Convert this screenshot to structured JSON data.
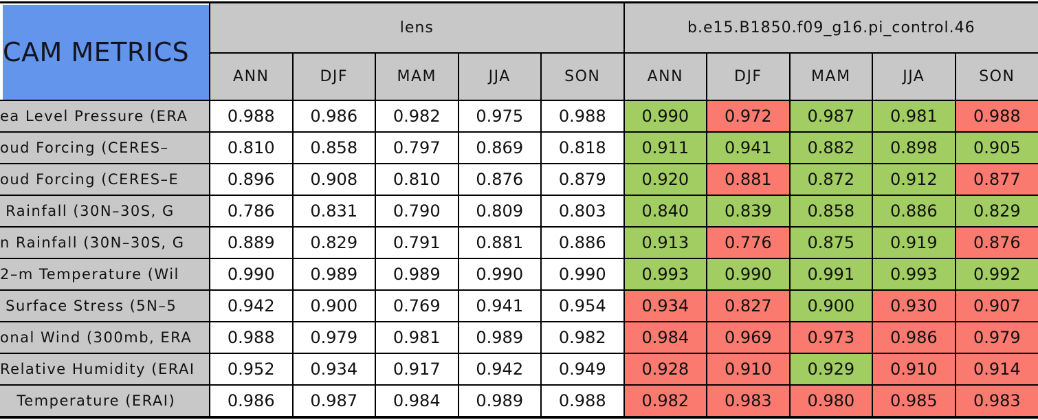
{
  "title_cell": {
    "text": "CAM METRICS"
  },
  "models": {
    "left": "lens",
    "right": "b.e15.B1850.f09_g16.pi_control.46"
  },
  "seasons": [
    "ANN",
    "DJF",
    "MAM",
    "JJA",
    "SON"
  ],
  "colors": {
    "title_bg": "#6495ED",
    "header_bg": "#C8C8C8",
    "lens_cell_bg": "#FFFFFF",
    "good_green": "#A2CD62",
    "bad_red": "#FA7A70",
    "border": "#000000",
    "text": "#111111"
  },
  "chart_data": {
    "type": "table",
    "title": "CAM METRICS",
    "column_groups": [
      "lens",
      "b.e15.B1850.f09_g16.pi_control.46"
    ],
    "columns": [
      "ANN",
      "DJF",
      "MAM",
      "JJA",
      "SON"
    ],
    "rows": [
      {
        "label": "ea Level Pressure (ERA",
        "lens": [
          0.988,
          0.986,
          0.982,
          0.975,
          0.988
        ],
        "control": [
          0.99,
          0.972,
          0.987,
          0.981,
          0.988
        ],
        "control_flags": [
          "green",
          "red",
          "green",
          "green",
          "red"
        ]
      },
      {
        "label": "oud Forcing (CERES–",
        "lens": [
          0.81,
          0.858,
          0.797,
          0.869,
          0.818
        ],
        "control": [
          0.911,
          0.941,
          0.882,
          0.898,
          0.905
        ],
        "control_flags": [
          "green",
          "green",
          "green",
          "green",
          "green"
        ]
      },
      {
        "label": "oud Forcing (CERES–E",
        "lens": [
          0.896,
          0.908,
          0.81,
          0.876,
          0.879
        ],
        "control": [
          0.92,
          0.881,
          0.872,
          0.912,
          0.877
        ],
        "control_flags": [
          "green",
          "red",
          "green",
          "green",
          "red"
        ]
      },
      {
        "label": " Rainfall (30N–30S, G",
        "lens": [
          0.786,
          0.831,
          0.79,
          0.809,
          0.803
        ],
        "control": [
          0.84,
          0.839,
          0.858,
          0.886,
          0.829
        ],
        "control_flags": [
          "green",
          "green",
          "green",
          "green",
          "green"
        ]
      },
      {
        "label": "n Rainfall (30N–30S, G",
        "lens": [
          0.889,
          0.829,
          0.791,
          0.881,
          0.886
        ],
        "control": [
          0.913,
          0.776,
          0.875,
          0.919,
          0.876
        ],
        "control_flags": [
          "green",
          "red",
          "green",
          "green",
          "red"
        ]
      },
      {
        "label": "2–m Temperature (Wil",
        "lens": [
          0.99,
          0.989,
          0.989,
          0.99,
          0.99
        ],
        "control": [
          0.993,
          0.99,
          0.991,
          0.993,
          0.992
        ],
        "control_flags": [
          "green",
          "green",
          "green",
          "green",
          "green"
        ]
      },
      {
        "label": " Surface Stress (5N–5",
        "lens": [
          0.942,
          0.9,
          0.769,
          0.941,
          0.954
        ],
        "control": [
          0.934,
          0.827,
          0.9,
          0.93,
          0.907
        ],
        "control_flags": [
          "red",
          "red",
          "green",
          "red",
          "red"
        ]
      },
      {
        "label": "onal Wind (300mb, ERA",
        "lens": [
          0.988,
          0.979,
          0.981,
          0.989,
          0.982
        ],
        "control": [
          0.984,
          0.969,
          0.973,
          0.986,
          0.979
        ],
        "control_flags": [
          "red",
          "red",
          "red",
          "red",
          "red"
        ]
      },
      {
        "label": "Relative Humidity (ERAI",
        "lens": [
          0.952,
          0.934,
          0.917,
          0.942,
          0.949
        ],
        "control": [
          0.928,
          0.91,
          0.929,
          0.91,
          0.914
        ],
        "control_flags": [
          "red",
          "red",
          "green",
          "red",
          "red"
        ]
      },
      {
        "label": "   Temperature (ERAI)",
        "lens": [
          0.986,
          0.987,
          0.984,
          0.989,
          0.988
        ],
        "control": [
          0.982,
          0.983,
          0.98,
          0.985,
          0.983
        ],
        "control_flags": [
          "red",
          "red",
          "red",
          "red",
          "red"
        ]
      }
    ]
  }
}
